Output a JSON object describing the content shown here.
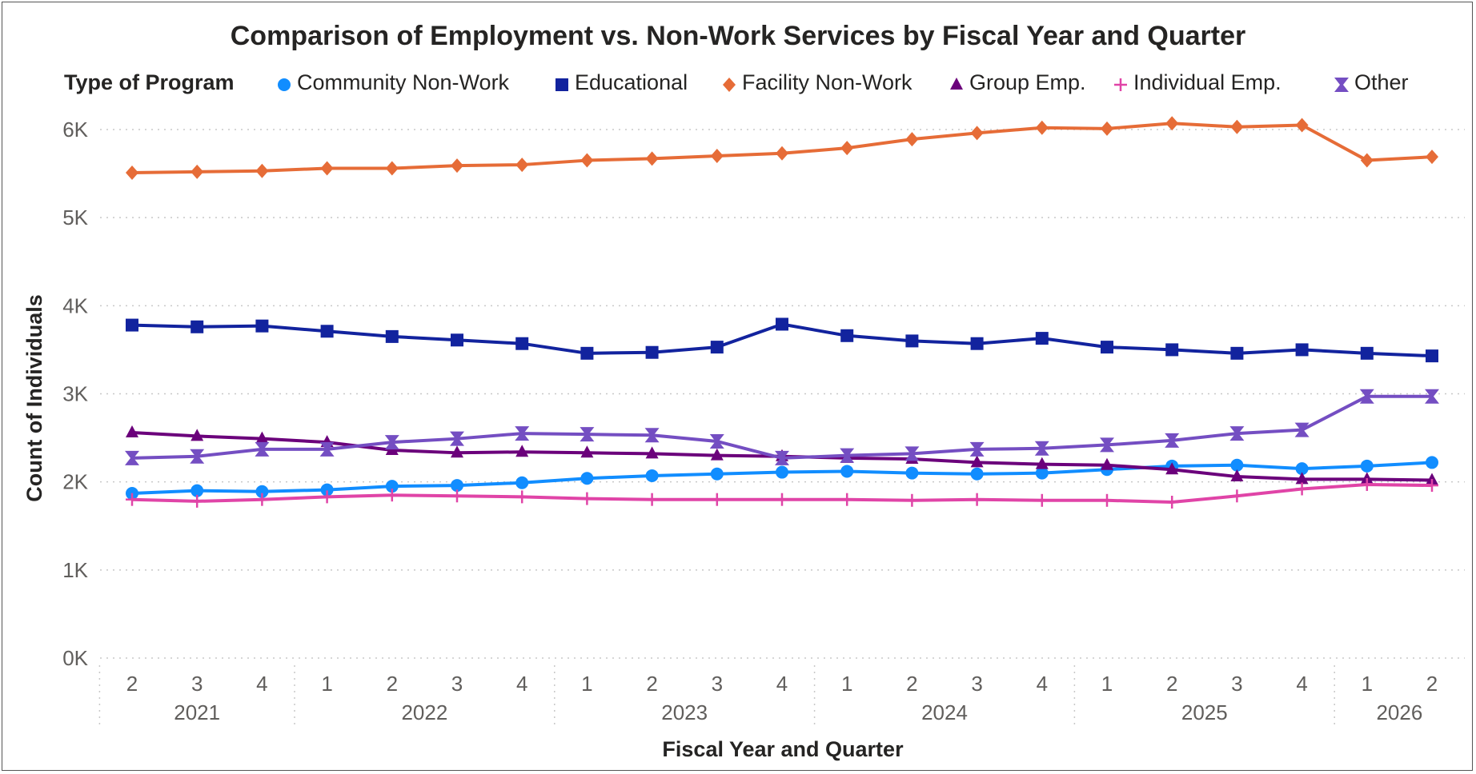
{
  "chart_data": {
    "type": "line",
    "title": "Comparison of Employment vs. Non-Work Services by Fiscal Year and Quarter",
    "legend_title": "Type of Program",
    "legend_position": "top",
    "xlabel": "Fiscal Year and Quarter",
    "ylabel": "Count of Individuals",
    "ylim": [
      0,
      6000
    ],
    "yticks": [
      0,
      1000,
      2000,
      3000,
      4000,
      5000,
      6000
    ],
    "ytick_labels": [
      "0K",
      "1K",
      "2K",
      "3K",
      "4K",
      "5K",
      "6K"
    ],
    "grid": true,
    "x": [
      {
        "year": "2021",
        "quarter": "2"
      },
      {
        "year": "2021",
        "quarter": "3"
      },
      {
        "year": "2021",
        "quarter": "4"
      },
      {
        "year": "2022",
        "quarter": "1"
      },
      {
        "year": "2022",
        "quarter": "2"
      },
      {
        "year": "2022",
        "quarter": "3"
      },
      {
        "year": "2022",
        "quarter": "4"
      },
      {
        "year": "2023",
        "quarter": "1"
      },
      {
        "year": "2023",
        "quarter": "2"
      },
      {
        "year": "2023",
        "quarter": "3"
      },
      {
        "year": "2023",
        "quarter": "4"
      },
      {
        "year": "2024",
        "quarter": "1"
      },
      {
        "year": "2024",
        "quarter": "2"
      },
      {
        "year": "2024",
        "quarter": "3"
      },
      {
        "year": "2024",
        "quarter": "4"
      },
      {
        "year": "2025",
        "quarter": "1"
      },
      {
        "year": "2025",
        "quarter": "2"
      },
      {
        "year": "2025",
        "quarter": "3"
      },
      {
        "year": "2025",
        "quarter": "4"
      },
      {
        "year": "2026",
        "quarter": "1"
      },
      {
        "year": "2026",
        "quarter": "2"
      }
    ],
    "series": [
      {
        "name": "Community Non-Work",
        "color": "#118dff",
        "marker": "circle",
        "values": [
          1870,
          1900,
          1890,
          1910,
          1950,
          1960,
          1990,
          2040,
          2070,
          2090,
          2110,
          2120,
          2100,
          2090,
          2100,
          2140,
          2180,
          2190,
          2150,
          2180,
          2220
        ]
      },
      {
        "name": "Educational",
        "color": "#12239e",
        "marker": "square",
        "values": [
          3780,
          3760,
          3770,
          3710,
          3650,
          3610,
          3570,
          3460,
          3470,
          3530,
          3790,
          3660,
          3600,
          3570,
          3630,
          3530,
          3500,
          3460,
          3500,
          3460,
          3430
        ]
      },
      {
        "name": "Facility Non-Work",
        "color": "#e66c37",
        "marker": "diamond",
        "values": [
          5510,
          5520,
          5530,
          5560,
          5560,
          5590,
          5600,
          5650,
          5670,
          5700,
          5730,
          5790,
          5890,
          5960,
          6020,
          6010,
          6070,
          6030,
          6050,
          5650,
          5690
        ]
      },
      {
        "name": "Group Emp.",
        "color": "#6b007b",
        "marker": "triangle",
        "values": [
          2560,
          2520,
          2490,
          2450,
          2360,
          2330,
          2340,
          2330,
          2320,
          2300,
          2290,
          2270,
          2260,
          2220,
          2200,
          2190,
          2140,
          2060,
          2030,
          2030,
          2020
        ]
      },
      {
        "name": "Individual Emp.",
        "color": "#e044a7",
        "marker": "plus",
        "values": [
          1800,
          1780,
          1800,
          1830,
          1850,
          1840,
          1830,
          1810,
          1800,
          1800,
          1800,
          1800,
          1790,
          1800,
          1790,
          1790,
          1770,
          1840,
          1920,
          1970,
          1960
        ]
      },
      {
        "name": "Other",
        "color": "#744ec2",
        "marker": "hourglass",
        "values": [
          2270,
          2290,
          2370,
          2370,
          2450,
          2490,
          2550,
          2540,
          2530,
          2460,
          2270,
          2300,
          2320,
          2370,
          2380,
          2420,
          2470,
          2550,
          2590,
          2970,
          2970
        ]
      }
    ]
  }
}
